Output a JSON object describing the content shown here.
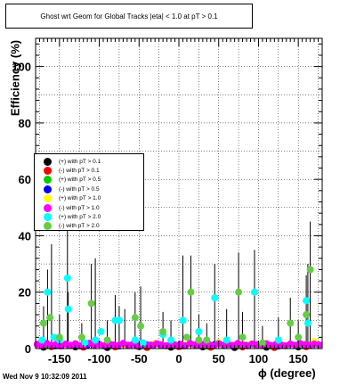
{
  "title": "Ghost wrt Geom for Global Tracks |eta| < 1.0 at pT > 0.1",
  "footer_timestamp": "Wed Nov  9 10:32:09 2011",
  "chart_data": {
    "type": "scatter",
    "title": "Ghost wrt Geom for Global Tracks |eta| < 1.0 at pT > 0.1",
    "xlabel": "ϕ (degree)",
    "ylabel": "Efficiency (%)",
    "xlim": [
      -180,
      180
    ],
    "ylim": [
      0,
      110
    ],
    "xticks": [
      -150,
      -100,
      -50,
      0,
      50,
      100,
      150
    ],
    "yticks": [
      0,
      20,
      40,
      60,
      80,
      100
    ],
    "grid": true,
    "legend_position": "middle-left",
    "series": [
      {
        "name": "(+) with pT > 0.1",
        "color": "#000000",
        "points": [
          [
            -170,
            0.5
          ],
          [
            -130,
            0.6
          ],
          [
            -90,
            0.4
          ],
          [
            -50,
            0.7
          ],
          [
            -10,
            0.5
          ],
          [
            30,
            0.6
          ],
          [
            70,
            0.4
          ],
          [
            110,
            0.5
          ],
          [
            150,
            0.6
          ]
        ]
      },
      {
        "name": "(-) with pT > 0.1",
        "color": "#ff0000",
        "points": [
          [
            -160,
            0.7
          ],
          [
            -120,
            0.5
          ],
          [
            -80,
            0.6
          ],
          [
            -40,
            0.4
          ],
          [
            0,
            0.7
          ],
          [
            40,
            0.5
          ],
          [
            80,
            0.6
          ],
          [
            120,
            0.4
          ],
          [
            160,
            0.7
          ]
        ]
      },
      {
        "name": "(+) with pT > 0.5",
        "color": "#00cc00",
        "points": [
          [
            -165,
            1.2
          ],
          [
            -125,
            1.0
          ],
          [
            -85,
            1.4
          ],
          [
            -45,
            1.1
          ],
          [
            -5,
            1.3
          ],
          [
            35,
            0.9
          ],
          [
            75,
            1.2
          ],
          [
            115,
            1.0
          ],
          [
            155,
            1.1
          ]
        ]
      },
      {
        "name": "(-) with pT > 0.5",
        "color": "#0000ff",
        "points": [
          [
            -155,
            1.0
          ],
          [
            -115,
            1.3
          ],
          [
            -75,
            0.9
          ],
          [
            -35,
            1.2
          ],
          [
            5,
            1.0
          ],
          [
            45,
            1.4
          ],
          [
            85,
            1.1
          ],
          [
            125,
            0.9
          ],
          [
            165,
            1.2
          ]
        ]
      },
      {
        "name": "(+) with pT > 1.0",
        "color": "#ffff00",
        "points": [
          [
            -150,
            1.5
          ],
          [
            -110,
            2.0
          ],
          [
            -70,
            1.2
          ],
          [
            -30,
            1.8
          ],
          [
            10,
            1.4
          ],
          [
            50,
            2.2
          ],
          [
            90,
            1.6
          ],
          [
            130,
            1.3
          ],
          [
            170,
            2.5
          ]
        ]
      },
      {
        "name": "(-) with pT > 1.0",
        "color": "#ff00ff",
        "points": [
          [
            -178,
            1.5
          ],
          [
            -172,
            1.0
          ],
          [
            -166,
            1.8
          ],
          [
            -160,
            1.2
          ],
          [
            -154,
            1.5
          ],
          [
            -148,
            0.9
          ],
          [
            -142,
            1.6
          ],
          [
            -136,
            1.1
          ],
          [
            -130,
            1.7
          ],
          [
            -124,
            1.0
          ],
          [
            -118,
            1.4
          ],
          [
            -112,
            1.9
          ],
          [
            -106,
            1.2
          ],
          [
            -100,
            1.5
          ],
          [
            -94,
            1.0
          ],
          [
            -88,
            1.7
          ],
          [
            -82,
            1.3
          ],
          [
            -76,
            1.1
          ],
          [
            -70,
            1.8
          ],
          [
            -64,
            1.2
          ],
          [
            -58,
            1.5
          ],
          [
            -52,
            0.9
          ],
          [
            -46,
            1.6
          ],
          [
            -40,
            1.4
          ],
          [
            -34,
            1.1
          ],
          [
            -28,
            1.7
          ],
          [
            -22,
            1.3
          ],
          [
            -16,
            1.0
          ],
          [
            -10,
            1.6
          ],
          [
            -4,
            1.2
          ],
          [
            2,
            1.5
          ],
          [
            8,
            1.0
          ],
          [
            14,
            1.8
          ],
          [
            20,
            1.3
          ],
          [
            26,
            1.1
          ],
          [
            32,
            1.6
          ],
          [
            38,
            1.4
          ],
          [
            44,
            1.0
          ],
          [
            50,
            1.7
          ],
          [
            56,
            1.2
          ],
          [
            62,
            1.5
          ],
          [
            68,
            1.1
          ],
          [
            74,
            1.8
          ],
          [
            80,
            1.3
          ],
          [
            86,
            1.0
          ],
          [
            92,
            1.6
          ],
          [
            98,
            1.4
          ],
          [
            104,
            1.2
          ],
          [
            110,
            1.7
          ],
          [
            116,
            1.1
          ],
          [
            122,
            1.5
          ],
          [
            128,
            1.3
          ],
          [
            134,
            1.0
          ],
          [
            140,
            1.6
          ],
          [
            146,
            1.2
          ],
          [
            152,
            1.8
          ],
          [
            158,
            1.4
          ],
          [
            164,
            1.1
          ],
          [
            170,
            1.6
          ],
          [
            176,
            1.3
          ]
        ]
      },
      {
        "name": "(+) with pT > 2.0",
        "color": "#00ffff",
        "points": [
          [
            -172,
            3
          ],
          [
            -165,
            20
          ],
          [
            -157,
            4
          ],
          [
            -150,
            3
          ],
          [
            -140,
            25
          ],
          [
            -139,
            14
          ],
          [
            -118,
            2
          ],
          [
            -105,
            3
          ],
          [
            -98,
            6
          ],
          [
            -80,
            10
          ],
          [
            -75,
            10
          ],
          [
            -55,
            3
          ],
          [
            -45,
            2
          ],
          [
            -20,
            5
          ],
          [
            -10,
            3
          ],
          [
            5,
            10
          ],
          [
            25,
            6
          ],
          [
            45,
            18
          ],
          [
            60,
            3
          ],
          [
            95,
            20
          ],
          [
            125,
            3
          ],
          [
            160,
            17
          ],
          [
            162,
            9
          ]
        ]
      },
      {
        "name": "(-) with pT > 2.0",
        "color": "#66cc44",
        "points": [
          [
            -170,
            9
          ],
          [
            -162,
            11
          ],
          [
            -150,
            4
          ],
          [
            -122,
            4
          ],
          [
            -110,
            16
          ],
          [
            -90,
            3
          ],
          [
            -55,
            11
          ],
          [
            -48,
            8
          ],
          [
            -20,
            6
          ],
          [
            10,
            4
          ],
          [
            15,
            20
          ],
          [
            25,
            3
          ],
          [
            35,
            3
          ],
          [
            75,
            20
          ],
          [
            80,
            4
          ],
          [
            105,
            2
          ],
          [
            140,
            9
          ],
          [
            150,
            4
          ],
          [
            160,
            12
          ],
          [
            165,
            28
          ]
        ]
      }
    ],
    "error_bars": [
      {
        "x": -170,
        "y": 9,
        "high": 15
      },
      {
        "x": -160,
        "y": 2,
        "high": 37
      },
      {
        "x": -165,
        "y": 20,
        "high": 28
      },
      {
        "x": -150,
        "y": 4,
        "high": 12
      },
      {
        "x": -140,
        "y": 25,
        "high": 43
      },
      {
        "x": -139,
        "y": 14,
        "high": 20
      },
      {
        "x": -122,
        "y": 4,
        "high": 9
      },
      {
        "x": -110,
        "y": 16,
        "high": 30
      },
      {
        "x": -105,
        "y": 3,
        "high": 32
      },
      {
        "x": -90,
        "y": 3,
        "high": 10
      },
      {
        "x": -80,
        "y": 10,
        "high": 19
      },
      {
        "x": -75,
        "y": 10,
        "high": 15
      },
      {
        "x": -68,
        "y": 2,
        "high": 14
      },
      {
        "x": -55,
        "y": 11,
        "high": 20
      },
      {
        "x": -48,
        "y": 8,
        "high": 22
      },
      {
        "x": -20,
        "y": 6,
        "high": 13
      },
      {
        "x": -10,
        "y": 3,
        "high": 10
      },
      {
        "x": 5,
        "y": 10,
        "high": 33
      },
      {
        "x": 15,
        "y": 20,
        "high": 33
      },
      {
        "x": 25,
        "y": 6,
        "high": 12
      },
      {
        "x": 35,
        "y": 3,
        "high": 9
      },
      {
        "x": 45,
        "y": 18,
        "high": 30
      },
      {
        "x": 60,
        "y": 3,
        "high": 14
      },
      {
        "x": 75,
        "y": 20,
        "high": 34
      },
      {
        "x": 80,
        "y": 4,
        "high": 13
      },
      {
        "x": 95,
        "y": 20,
        "high": 35
      },
      {
        "x": 105,
        "y": 2,
        "high": 8
      },
      {
        "x": 125,
        "y": 3,
        "high": 11
      },
      {
        "x": 140,
        "y": 9,
        "high": 18
      },
      {
        "x": 150,
        "y": 4,
        "high": 10
      },
      {
        "x": 160,
        "y": 12,
        "high": 26
      },
      {
        "x": 162,
        "y": 17,
        "high": 30
      },
      {
        "x": 165,
        "y": 28,
        "high": 45
      }
    ]
  }
}
